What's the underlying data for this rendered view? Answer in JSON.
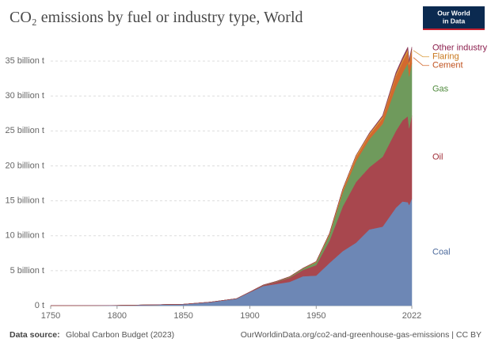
{
  "chart_data": {
    "type": "stacked-area",
    "title": "CO₂ emissions by fuel or industry type, World",
    "logo": [
      "Our World",
      "in Data"
    ],
    "source_label": "Data source:",
    "source": "Global Carbon Budget (2023)",
    "url": "OurWorldinData.org/co2-and-greenhouse-gas-emissions | CC BY",
    "x": [
      1750,
      1800,
      1850,
      1870,
      1890,
      1900,
      1910,
      1920,
      1930,
      1940,
      1950,
      1960,
      1970,
      1980,
      1990,
      2000,
      2010,
      2015,
      2019,
      2020,
      2022
    ],
    "xlim": [
      1750,
      2022
    ],
    "xticks": [
      1750,
      1800,
      1850,
      1900,
      1950,
      2022
    ],
    "ylim": [
      0,
      37.5
    ],
    "yticks": [
      {
        "value": 0,
        "label": "0 t"
      },
      {
        "value": 5,
        "label": "5 billion t"
      },
      {
        "value": 10,
        "label": "10 billion t"
      },
      {
        "value": 15,
        "label": "15 billion t"
      },
      {
        "value": 20,
        "label": "20 billion t"
      },
      {
        "value": 25,
        "label": "25 billion t"
      },
      {
        "value": 30,
        "label": "30 billion t"
      },
      {
        "value": 35,
        "label": "35 billion t"
      }
    ],
    "grid": true,
    "series": [
      {
        "name": "Coal",
        "color": "#6d87b5",
        "label_color": "#4c6a9c",
        "values": [
          0.01,
          0.03,
          0.2,
          0.5,
          1.0,
          1.9,
          2.8,
          3.1,
          3.4,
          4.2,
          4.3,
          6.1,
          7.8,
          9.0,
          10.9,
          11.3,
          14.0,
          14.9,
          14.8,
          14.4,
          15.3
        ]
      },
      {
        "name": "Oil",
        "color": "#a8474e",
        "label_color": "#a02c36",
        "values": [
          0,
          0,
          0,
          0,
          0,
          0.05,
          0.1,
          0.3,
          0.6,
          0.9,
          1.5,
          3.2,
          6.4,
          8.7,
          8.9,
          10.0,
          11.0,
          11.6,
          12.3,
          11.0,
          11.9
        ]
      },
      {
        "name": "Gas",
        "color": "#6f9a5c",
        "label_color": "#4f8a3c",
        "values": [
          0,
          0,
          0,
          0,
          0,
          0.01,
          0.03,
          0.05,
          0.1,
          0.2,
          0.4,
          0.8,
          2.0,
          3.0,
          4.0,
          4.7,
          6.3,
          6.8,
          7.6,
          7.4,
          7.5
        ]
      },
      {
        "name": "Cement",
        "color": "#d2692e",
        "label_color": "#c0521e",
        "values": [
          0,
          0,
          0,
          0,
          0,
          0,
          0.02,
          0.03,
          0.05,
          0.05,
          0.07,
          0.15,
          0.3,
          0.5,
          0.6,
          0.8,
          1.5,
          1.6,
          1.6,
          1.6,
          1.6
        ]
      },
      {
        "name": "Flaring",
        "color": "#d99a3a",
        "label_color": "#c8761c",
        "values": [
          0,
          0,
          0,
          0,
          0,
          0,
          0,
          0,
          0,
          0,
          0.05,
          0.1,
          0.2,
          0.3,
          0.2,
          0.25,
          0.3,
          0.3,
          0.4,
          0.4,
          0.4
        ]
      },
      {
        "name": "Other industry",
        "color": "#8c3a5a",
        "label_color": "#8c1f4e",
        "values": [
          0,
          0,
          0,
          0,
          0,
          0,
          0,
          0,
          0,
          0,
          0,
          0,
          0,
          0,
          0.1,
          0.15,
          0.25,
          0.28,
          0.3,
          0.3,
          0.3
        ]
      }
    ]
  }
}
